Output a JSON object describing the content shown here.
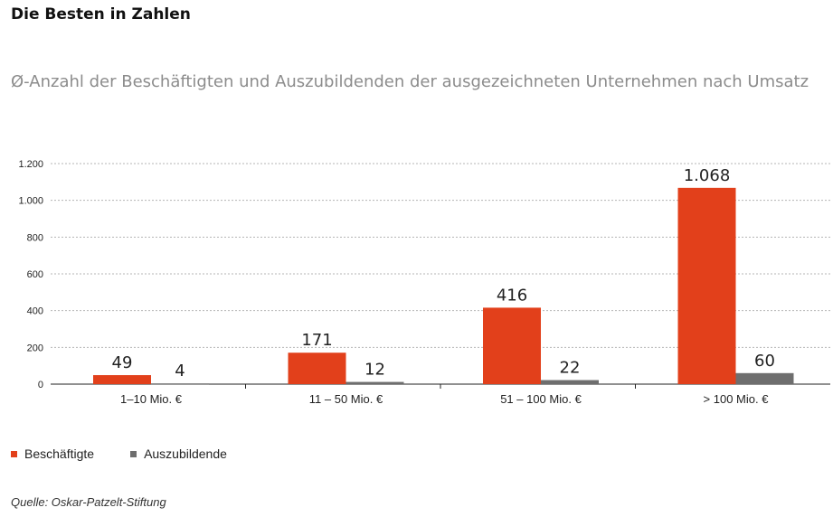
{
  "header": {
    "title": "Die Besten in Zahlen",
    "subtitle": "Ø-Anzahl der Beschäftigten und Auszubildenden der ausgezeichneten Unternehmen nach Umsatz"
  },
  "source": "Quelle: Oskar-Patzelt-Stiftung",
  "colors": {
    "beschaeftigte": "#e2401b",
    "auszubildende": "#6e6e6e",
    "grid": "#b5b5b5"
  },
  "chart_data": {
    "type": "bar",
    "categories": [
      "1–10 Mio. €",
      "11 – 50 Mio. €",
      "51 – 100 Mio. €",
      "> 100 Mio. €"
    ],
    "series": [
      {
        "name": "Beschäftigte",
        "values": [
          49,
          171,
          416,
          1068
        ],
        "labels": [
          "49",
          "171",
          "416",
          "1.068"
        ]
      },
      {
        "name": "Auszubildende",
        "values": [
          4,
          12,
          22,
          60
        ],
        "labels": [
          "4",
          "12",
          "22",
          "60"
        ]
      }
    ],
    "ylim": [
      0,
      1200
    ],
    "yticks": [
      0,
      200,
      400,
      600,
      800,
      1000,
      1200
    ],
    "ytick_labels": [
      "0",
      "200",
      "400",
      "600",
      "800",
      "1.000",
      "1.200"
    ],
    "grid": true,
    "legend_position": "bottom-left"
  }
}
